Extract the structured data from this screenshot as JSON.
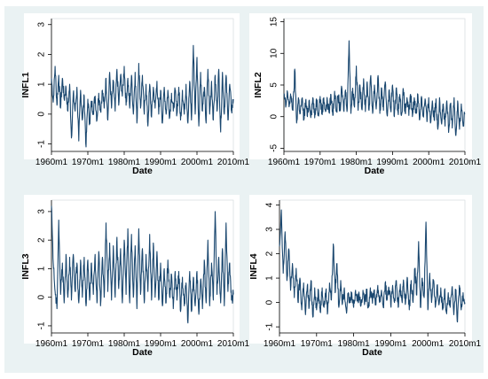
{
  "chart_data": [
    {
      "type": "line",
      "ylabel": "INFL1",
      "xlabel": "Date",
      "x_ticks": [
        "1960m1",
        "1970m1",
        "1980m1",
        "1990m1",
        "2000m1",
        "2010m1"
      ],
      "y_ticks": [
        "-1",
        "0",
        "1",
        "2",
        "3"
      ],
      "xlim": [
        1960,
        2010
      ],
      "ylim": [
        -1.25,
        3.2
      ],
      "grid": false,
      "series": [
        {
          "x": [
            1960.0,
            1960.5,
            1961.0,
            1961.5,
            1962.0,
            1962.5,
            1963.0,
            1963.5,
            1964.0,
            1964.5,
            1965.0,
            1965.5,
            1966.0,
            1966.5,
            1967.0,
            1967.5,
            1968.0,
            1968.5,
            1969.0,
            1969.5,
            1970.0,
            1970.5,
            1971.0,
            1971.5,
            1972.0,
            1972.5,
            1973.0,
            1973.5,
            1974.0,
            1974.5,
            1975.0,
            1975.5,
            1976.0,
            1976.5,
            1977.0,
            1977.5,
            1978.0,
            1978.5,
            1979.0,
            1979.5,
            1980.0,
            1980.5,
            1981.0,
            1981.5,
            1982.0,
            1982.5,
            1983.0,
            1983.5,
            1984.0,
            1984.5,
            1985.0,
            1985.5,
            1986.0,
            1986.5,
            1987.0,
            1987.5,
            1988.0,
            1988.5,
            1989.0,
            1989.5,
            1990.0,
            1990.5,
            1991.0,
            1991.5,
            1992.0,
            1992.5,
            1993.0,
            1993.5,
            1994.0,
            1994.5,
            1995.0,
            1995.5,
            1996.0,
            1996.5,
            1997.0,
            1997.5,
            1998.0,
            1998.5,
            1999.0,
            1999.5,
            2000.0,
            2000.5,
            2001.0,
            2001.5,
            2002.0,
            2002.5,
            2003.0,
            2003.5,
            2004.0,
            2004.5,
            2005.0,
            2005.5,
            2006.0,
            2006.5,
            2007.0,
            2007.5,
            2008.0,
            2008.5,
            2009.0,
            2009.5,
            2010.0
          ],
          "y": [
            1.2,
            0.4,
            1.6,
            0.3,
            1.3,
            0.2,
            1.2,
            0.5,
            0.9,
            0.1,
            1.0,
            -0.8,
            0.7,
            0.1,
            0.9,
            -0.9,
            0.8,
            -0.2,
            0.6,
            -1.1,
            0.5,
            -0.3,
            0.4,
            0.1,
            0.6,
            -0.2,
            0.7,
            0.1,
            0.8,
            0.2,
            1.2,
            -0.2,
            1.4,
            0.2,
            1.1,
            0.1,
            1.5,
            0.3,
            1.3,
            0.6,
            1.6,
            0.3,
            1.2,
            0.2,
            1.3,
            0.0,
            1.4,
            -0.3,
            1.7,
            0.2,
            1.3,
            0.0,
            1.0,
            -0.4,
            1.0,
            -0.1,
            0.9,
            0.2,
            1.1,
            0.0,
            0.8,
            -0.3,
            0.9,
            0.0,
            0.8,
            -0.1,
            0.7,
            0.1,
            0.8,
            0.0,
            0.9,
            -0.2,
            0.8,
            0.0,
            1.0,
            -0.3,
            1.1,
            -0.2,
            2.3,
            0.0,
            1.9,
            -0.4,
            1.4,
            0.1,
            0.9,
            -0.3,
            1.5,
            0.0,
            1.1,
            -0.2,
            1.3,
            0.1,
            1.5,
            -0.6,
            1.4,
            0.0,
            1.3,
            -0.2,
            1.0,
            0.1,
            0.5
          ]
        }
      ]
    },
    {
      "type": "line",
      "ylabel": "INFL2",
      "xlabel": "Date",
      "x_ticks": [
        "1960m1",
        "1970m1",
        "1980m1",
        "1990m1",
        "2000m1",
        "2010m1"
      ],
      "y_ticks": [
        "-5",
        "0",
        "5",
        "10",
        "15"
      ],
      "xlim": [
        1960,
        2010
      ],
      "ylim": [
        -5.5,
        15.5
      ],
      "grid": false,
      "series": [
        {
          "x": [
            1960.0,
            1960.5,
            1961.0,
            1961.5,
            1962.0,
            1962.5,
            1963.0,
            1963.5,
            1964.0,
            1964.5,
            1965.0,
            1965.5,
            1966.0,
            1966.5,
            1967.0,
            1967.5,
            1968.0,
            1968.5,
            1969.0,
            1969.5,
            1970.0,
            1970.5,
            1971.0,
            1971.5,
            1972.0,
            1972.5,
            1973.0,
            1973.5,
            1974.0,
            1974.5,
            1975.0,
            1975.5,
            1976.0,
            1976.5,
            1977.0,
            1977.5,
            1978.0,
            1978.5,
            1979.0,
            1979.5,
            1980.0,
            1980.5,
            1981.0,
            1981.5,
            1982.0,
            1982.5,
            1983.0,
            1983.5,
            1984.0,
            1984.5,
            1985.0,
            1985.5,
            1986.0,
            1986.5,
            1987.0,
            1987.5,
            1988.0,
            1988.5,
            1989.0,
            1989.5,
            1990.0,
            1990.5,
            1991.0,
            1991.5,
            1992.0,
            1992.5,
            1993.0,
            1993.5,
            1994.0,
            1994.5,
            1995.0,
            1995.5,
            1996.0,
            1996.5,
            1997.0,
            1997.5,
            1998.0,
            1998.5,
            1999.0,
            1999.5,
            2000.0,
            2000.5,
            2001.0,
            2001.5,
            2002.0,
            2002.5,
            2003.0,
            2003.5,
            2004.0,
            2004.5,
            2005.0,
            2005.5,
            2006.0,
            2006.5,
            2007.0,
            2007.5,
            2008.0,
            2008.5,
            2009.0,
            2009.5,
            2010.0
          ],
          "y": [
            3.5,
            1.5,
            3.8,
            1.8,
            3.2,
            1.0,
            7.5,
            -1.0,
            3.0,
            0.5,
            2.8,
            -0.5,
            2.5,
            0.0,
            2.6,
            0.3,
            3.0,
            -0.2,
            2.8,
            0.5,
            3.2,
            0.4,
            3.0,
            0.8,
            2.5,
            0.6,
            3.5,
            0.2,
            4.0,
            0.8,
            3.3,
            1.0,
            4.5,
            1.0,
            4.2,
            1.2,
            12.0,
            0.5,
            4.5,
            1.5,
            8.0,
            1.0,
            5.0,
            1.2,
            6.0,
            0.8,
            5.5,
            1.0,
            6.5,
            0.5,
            5.0,
            1.2,
            6.5,
            0.5,
            4.5,
            1.0,
            5.5,
            0.2,
            4.0,
            1.0,
            5.0,
            0.0,
            4.5,
            0.8,
            3.5,
            0.3,
            4.2,
            0.5,
            3.0,
            0.2,
            3.5,
            0.0,
            3.0,
            0.5,
            3.5,
            -0.5,
            3.2,
            0.0,
            2.8,
            -0.8,
            3.0,
            -1.0,
            2.5,
            -0.5,
            2.8,
            -2.0,
            3.0,
            -1.0,
            2.0,
            -1.5,
            2.5,
            -2.5,
            2.0,
            -1.8,
            3.0,
            -3.0,
            2.5,
            -2.0,
            2.0,
            -1.5,
            0.5
          ]
        }
      ]
    },
    {
      "type": "line",
      "ylabel": "INFL3",
      "xlabel": "Date",
      "x_ticks": [
        "1960m1",
        "1970m1",
        "1980m1",
        "1990m1",
        "2000m1",
        "2010m1"
      ],
      "y_ticks": [
        "-1",
        "0",
        "1",
        "2",
        "3"
      ],
      "xlim": [
        1960,
        2010
      ],
      "ylim": [
        -1.25,
        3.4
      ],
      "grid": false,
      "series": [
        {
          "x": [
            1960.0,
            1960.5,
            1961.0,
            1961.5,
            1962.0,
            1962.5,
            1963.0,
            1963.5,
            1964.0,
            1964.5,
            1965.0,
            1965.5,
            1966.0,
            1966.5,
            1967.0,
            1967.5,
            1968.0,
            1968.5,
            1969.0,
            1969.5,
            1970.0,
            1970.5,
            1971.0,
            1971.5,
            1972.0,
            1972.5,
            1973.0,
            1973.5,
            1974.0,
            1974.5,
            1975.0,
            1975.5,
            1976.0,
            1976.5,
            1977.0,
            1977.5,
            1978.0,
            1978.5,
            1979.0,
            1979.5,
            1980.0,
            1980.5,
            1981.0,
            1981.5,
            1982.0,
            1982.5,
            1983.0,
            1983.5,
            1984.0,
            1984.5,
            1985.0,
            1985.5,
            1986.0,
            1986.5,
            1987.0,
            1987.5,
            1988.0,
            1988.5,
            1989.0,
            1989.5,
            1990.0,
            1990.5,
            1991.0,
            1991.5,
            1992.0,
            1992.5,
            1993.0,
            1993.5,
            1994.0,
            1994.5,
            1995.0,
            1995.5,
            1996.0,
            1996.5,
            1997.0,
            1997.5,
            1998.0,
            1998.5,
            1999.0,
            1999.5,
            2000.0,
            2000.5,
            2001.0,
            2001.5,
            2002.0,
            2002.5,
            2003.0,
            2003.5,
            2004.0,
            2004.5,
            2005.0,
            2005.5,
            2006.0,
            2006.5,
            2007.0,
            2007.5,
            2008.0,
            2008.5,
            2009.0,
            2009.5,
            2010.0
          ],
          "y": [
            3.2,
            1.2,
            0.2,
            -0.4,
            2.7,
            0.1,
            1.2,
            -0.2,
            1.5,
            0.0,
            1.4,
            -0.1,
            1.5,
            0.2,
            1.2,
            -0.2,
            1.3,
            0.0,
            1.4,
            -0.3,
            1.3,
            -0.1,
            1.2,
            0.1,
            1.5,
            -0.2,
            1.6,
            -0.3,
            1.4,
            0.0,
            2.6,
            0.2,
            1.9,
            -0.1,
            1.8,
            0.0,
            2.1,
            0.3,
            1.7,
            -0.2,
            2.0,
            0.1,
            2.4,
            -0.2,
            2.2,
            0.0,
            1.8,
            -0.4,
            2.4,
            0.1,
            1.7,
            -0.2,
            1.5,
            0.2,
            2.2,
            -0.1,
            1.9,
            0.0,
            1.6,
            -0.1,
            1.2,
            -0.3,
            1.0,
            -0.2,
            1.3,
            0.0,
            0.8,
            -0.4,
            0.9,
            -0.1,
            0.9,
            -0.5,
            0.7,
            -0.3,
            0.5,
            -0.9,
            0.9,
            -0.5,
            0.7,
            -0.3,
            0.9,
            -0.6,
            0.6,
            -0.4,
            1.3,
            -0.2,
            2.0,
            -0.3,
            1.2,
            -0.1,
            3.0,
            0.1,
            1.4,
            -0.2,
            1.7,
            -0.3,
            2.6,
            0.2,
            1.2,
            -0.1,
            0.1
          ]
        }
      ]
    },
    {
      "type": "line",
      "ylabel": "INFL4",
      "xlabel": "Date",
      "x_ticks": [
        "1960m1",
        "1970m1",
        "1980m1",
        "1990m1",
        "2000m1",
        "2010m1"
      ],
      "y_ticks": [
        "-1",
        "0",
        "1",
        "2",
        "3",
        "4"
      ],
      "xlim": [
        1960,
        2010
      ],
      "ylim": [
        -1.25,
        4.2
      ],
      "grid": false,
      "series": [
        {
          "x": [
            1960.0,
            1960.5,
            1961.0,
            1961.5,
            1962.0,
            1962.5,
            1963.0,
            1963.5,
            1964.0,
            1964.5,
            1965.0,
            1965.5,
            1966.0,
            1966.5,
            1967.0,
            1967.5,
            1968.0,
            1968.5,
            1969.0,
            1969.5,
            1970.0,
            1970.5,
            1971.0,
            1971.5,
            1972.0,
            1972.5,
            1973.0,
            1973.5,
            1974.0,
            1974.5,
            1975.0,
            1975.5,
            1976.0,
            1976.5,
            1977.0,
            1977.5,
            1978.0,
            1978.5,
            1979.0,
            1979.5,
            1980.0,
            1980.5,
            1981.0,
            1981.5,
            1982.0,
            1982.5,
            1983.0,
            1983.5,
            1984.0,
            1984.5,
            1985.0,
            1985.5,
            1986.0,
            1986.5,
            1987.0,
            1987.5,
            1988.0,
            1988.5,
            1989.0,
            1989.5,
            1990.0,
            1990.5,
            1991.0,
            1991.5,
            1992.0,
            1992.5,
            1993.0,
            1993.5,
            1994.0,
            1994.5,
            1995.0,
            1995.5,
            1996.0,
            1996.5,
            1997.0,
            1997.5,
            1998.0,
            1998.5,
            1999.0,
            1999.5,
            2000.0,
            2000.5,
            2001.0,
            2001.5,
            2002.0,
            2002.5,
            2003.0,
            2003.5,
            2004.0,
            2004.5,
            2005.0,
            2005.5,
            2006.0,
            2006.5,
            2007.0,
            2007.5,
            2008.0,
            2008.5,
            2009.0,
            2009.5,
            2010.0
          ],
          "y": [
            2.3,
            3.8,
            1.2,
            2.9,
            0.9,
            2.2,
            0.5,
            1.6,
            0.2,
            1.4,
            0.0,
            1.0,
            -0.3,
            0.8,
            -0.5,
            0.7,
            -0.2,
            0.9,
            -0.6,
            0.6,
            -0.3,
            0.5,
            -0.4,
            0.6,
            -0.2,
            0.5,
            -0.4,
            0.8,
            0.1,
            2.4,
            0.4,
            1.6,
            -0.2,
            0.9,
            0.0,
            0.6,
            -0.3,
            0.3,
            0.0,
            0.4,
            -0.2,
            0.5,
            0.1,
            0.3,
            -0.1,
            0.5,
            0.0,
            0.4,
            -0.2,
            0.6,
            0.1,
            0.5,
            -0.1,
            0.7,
            0.0,
            0.5,
            -0.2,
            0.8,
            0.1,
            0.6,
            -0.1,
            0.7,
            0.0,
            0.9,
            -0.2,
            0.6,
            0.1,
            0.8,
            0.0,
            1.0,
            -0.3,
            0.9,
            0.0,
            1.4,
            0.3,
            2.5,
            -0.2,
            1.0,
            0.2,
            3.3,
            -0.3,
            1.2,
            0.0,
            0.9,
            -0.2,
            0.7,
            -0.1,
            0.6,
            -0.3,
            0.5,
            -0.4,
            0.4,
            -0.2,
            0.6,
            -0.5,
            0.5,
            -0.8,
            0.7,
            -0.3,
            0.4,
            0.0
          ]
        }
      ]
    }
  ]
}
